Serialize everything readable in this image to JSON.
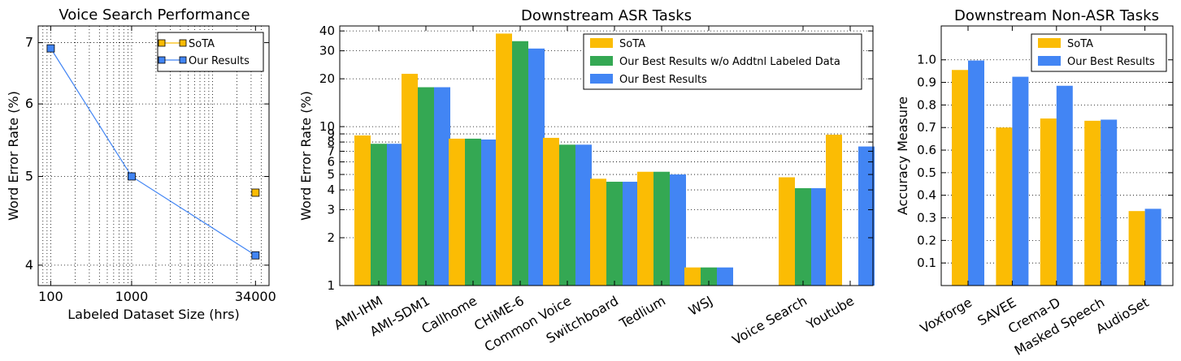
{
  "chart_data": [
    {
      "type": "line",
      "title": "Voice Search Performance",
      "xlabel": "Labeled Dataset Size (hrs)",
      "ylabel": "Word Error Rate (%)",
      "x_scale": "log",
      "y_scale": "log",
      "xlim": [
        70,
        50000
      ],
      "ylim": [
        3.8,
        7.3
      ],
      "x_ticks": [
        100,
        1000,
        34000
      ],
      "x_tick_labels": [
        "100",
        "1000",
        "34000"
      ],
      "y_ticks": [
        4,
        5,
        6,
        7
      ],
      "y_tick_labels": [
        "4",
        "5",
        "6",
        "7"
      ],
      "grid": true,
      "legend_position": "top-right",
      "series": [
        {
          "name": "SoTA",
          "color": "#fbbc04",
          "points": [
            {
              "x": 34000,
              "y": 4.8
            }
          ]
        },
        {
          "name": "Our Results",
          "color": "#4285f4",
          "points": [
            {
              "x": 100,
              "y": 6.9
            },
            {
              "x": 1000,
              "y": 5.0
            },
            {
              "x": 34000,
              "y": 4.1
            }
          ]
        }
      ]
    },
    {
      "type": "bar",
      "title": "Downstream ASR Tasks",
      "xlabel": "",
      "ylabel": "Word Error Rate (%)",
      "y_scale": "log",
      "ylim": [
        1,
        43
      ],
      "y_ticks": [
        1,
        2,
        3,
        4,
        5,
        6,
        7,
        8,
        9,
        10,
        20,
        30,
        40
      ],
      "y_tick_labels": [
        "1",
        "2",
        "3",
        "4",
        "5",
        "6",
        "7",
        "8",
        "9",
        "10",
        "20",
        "30",
        "40"
      ],
      "grid": true,
      "legend_position": "top-right",
      "categories": [
        "AMI-IHM",
        "AMI-SDM1",
        "Callhome",
        "CHiME-6",
        "Common Voice",
        "Switchboard",
        "Tedlium",
        "WSJ",
        "",
        "Voice Search",
        "Youtube"
      ],
      "series": [
        {
          "name": "SoTA",
          "color": "#fbbc04",
          "values": [
            8.8,
            21.5,
            8.4,
            38.5,
            8.5,
            4.7,
            5.2,
            1.3,
            null,
            4.8,
            8.9
          ]
        },
        {
          "name": "Our Best Results w/o Addtnl Labeled Data",
          "color": "#34a853",
          "values": [
            7.8,
            17.7,
            8.4,
            34.5,
            7.7,
            4.5,
            5.2,
            1.3,
            null,
            4.1,
            null
          ]
        },
        {
          "name": "Our Best Results",
          "color": "#4285f4",
          "values": [
            7.8,
            17.7,
            8.3,
            31.0,
            7.7,
            4.5,
            5.0,
            1.3,
            null,
            4.1,
            7.5
          ]
        }
      ]
    },
    {
      "type": "bar",
      "title": "Downstream Non-ASR Tasks",
      "xlabel": "",
      "ylabel": "Accuracy Measure",
      "ylim": [
        0,
        1.15
      ],
      "y_ticks": [
        0.1,
        0.2,
        0.3,
        0.4,
        0.5,
        0.6,
        0.7,
        0.8,
        0.9,
        1.0
      ],
      "y_tick_labels": [
        "0.1",
        "0.2",
        "0.3",
        "0.4",
        "0.5",
        "0.6",
        "0.7",
        "0.8",
        "0.9",
        "1.0"
      ],
      "grid": true,
      "legend_position": "top-right",
      "categories": [
        "Voxforge",
        "SAVEE",
        "Crema-D",
        "Masked Speech",
        "AudioSet"
      ],
      "series": [
        {
          "name": "SoTA",
          "color": "#fbbc04",
          "values": [
            0.955,
            0.7,
            0.74,
            0.73,
            0.33
          ]
        },
        {
          "name": "Our Best Results",
          "color": "#4285f4",
          "values": [
            0.997,
            0.925,
            0.885,
            0.735,
            0.34
          ]
        }
      ]
    }
  ]
}
